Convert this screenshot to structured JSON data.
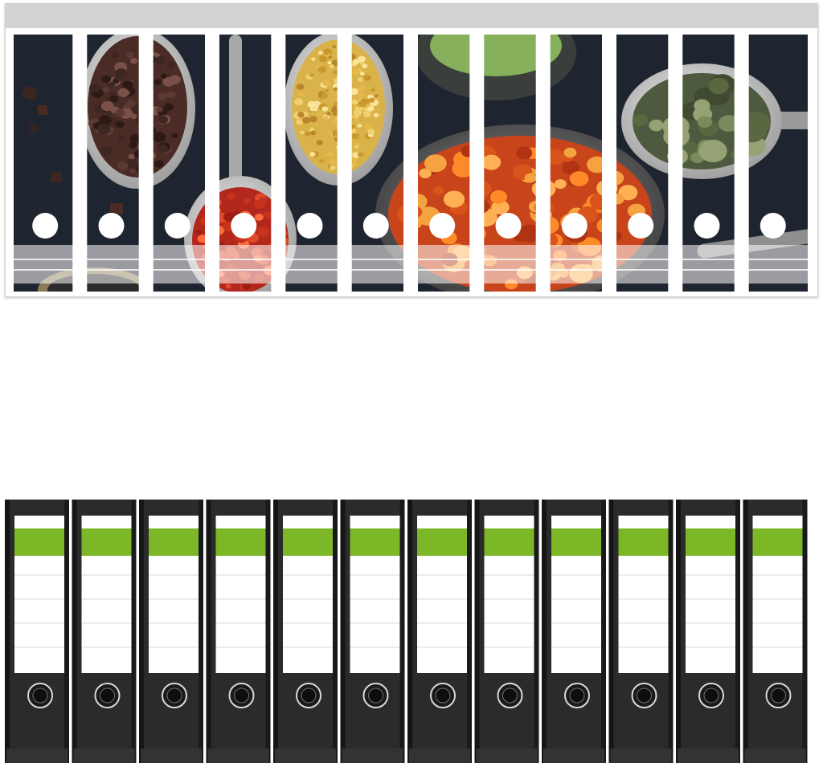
{
  "product": {
    "label_sheet": {
      "strip_count": 12,
      "motif": [
        "cacao-nibs",
        "goji-berries",
        "bee-pollen",
        "matcha-powder",
        "physalis",
        "pumpkin-seeds",
        "chia-seeds"
      ],
      "colors": {
        "background": "#1f2530",
        "strip_gap": "#ffffff",
        "top_bar": "#d3d3d3",
        "label_band": "#e9e9e9"
      }
    },
    "binders": {
      "count": 12,
      "colors": {
        "body": "#2b2b2b",
        "label_white": "#ffffff",
        "label_green": "#7cb727",
        "ring": "#d9d9d9"
      }
    }
  }
}
